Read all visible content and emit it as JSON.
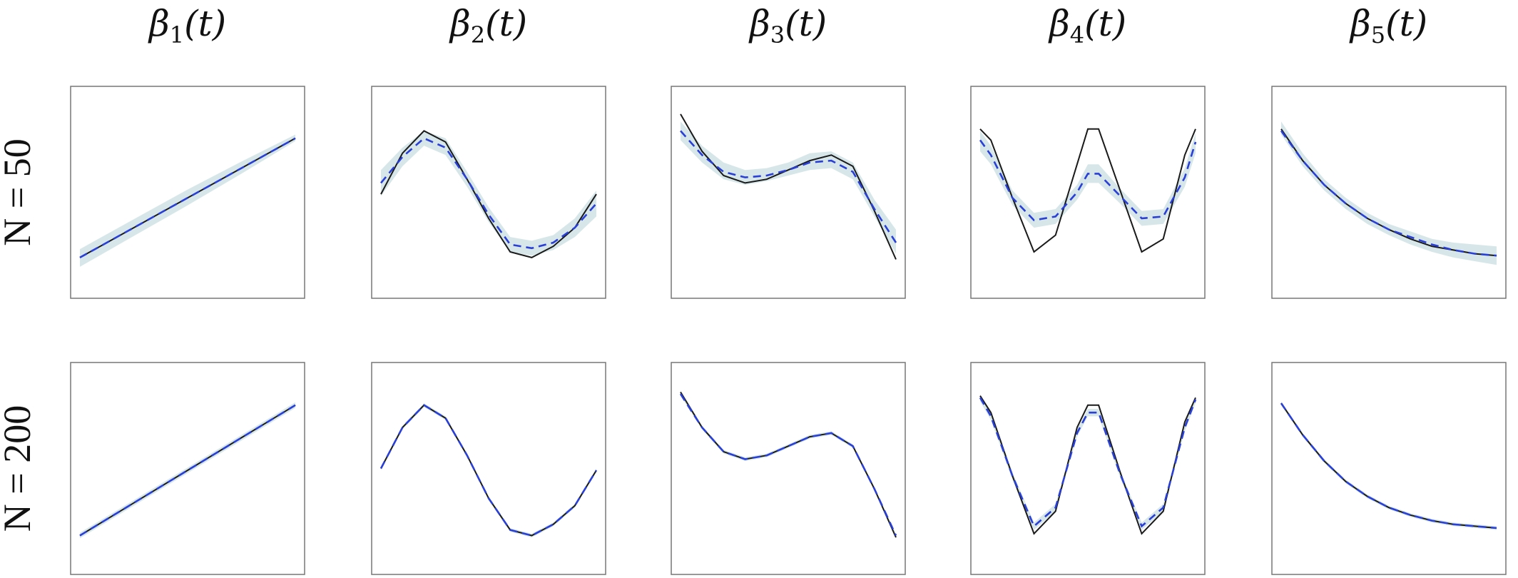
{
  "columns": [
    {
      "symbol": "β",
      "subscript": "1",
      "arg": "(t)"
    },
    {
      "symbol": "β",
      "subscript": "2",
      "arg": "(t)"
    },
    {
      "symbol": "β",
      "subscript": "3",
      "arg": "(t)"
    },
    {
      "symbol": "β",
      "subscript": "4",
      "arg": "(t)"
    },
    {
      "symbol": "β",
      "subscript": "5",
      "arg": "(t)"
    }
  ],
  "rows": [
    {
      "label": "N = 50"
    },
    {
      "label": "N = 200"
    }
  ],
  "colors": {
    "true_curve": "#1a1a1a",
    "estimate": "#2a3fd6",
    "band": "#c9dfe2",
    "frame": "#777777"
  },
  "chart_data": [
    {
      "type": "line",
      "row": 0,
      "col": 0,
      "x": [
        0,
        0.25,
        0.5,
        0.75,
        1
      ],
      "series": [
        {
          "values": [
            0.15,
            0.31,
            0.47,
            0.63,
            0.79
          ]
        },
        {
          "values": [
            0.15,
            0.31,
            0.47,
            0.63,
            0.79
          ]
        }
      ],
      "band_lower": [
        0.1,
        0.265,
        0.43,
        0.6,
        0.775
      ],
      "band_upper": [
        0.195,
        0.355,
        0.515,
        0.665,
        0.81
      ],
      "ylim": [
        0,
        1
      ]
    },
    {
      "type": "line",
      "row": 0,
      "col": 1,
      "x": [
        0,
        0.1,
        0.2,
        0.3,
        0.4,
        0.5,
        0.6,
        0.7,
        0.8,
        0.9,
        1
      ],
      "series": [
        {
          "values": [
            0.49,
            0.71,
            0.83,
            0.77,
            0.57,
            0.36,
            0.18,
            0.15,
            0.21,
            0.31,
            0.49
          ]
        },
        {
          "values": [
            0.55,
            0.69,
            0.79,
            0.74,
            0.57,
            0.38,
            0.22,
            0.2,
            0.23,
            0.31,
            0.44
          ]
        }
      ],
      "band_lower": [
        0.48,
        0.64,
        0.75,
        0.7,
        0.53,
        0.34,
        0.18,
        0.16,
        0.19,
        0.26,
        0.37
      ],
      "band_upper": [
        0.62,
        0.74,
        0.83,
        0.79,
        0.61,
        0.42,
        0.26,
        0.24,
        0.27,
        0.36,
        0.51
      ],
      "ylim": [
        0,
        1
      ]
    },
    {
      "type": "line",
      "row": 0,
      "col": 2,
      "x": [
        0,
        0.1,
        0.2,
        0.3,
        0.4,
        0.5,
        0.6,
        0.7,
        0.8,
        0.9,
        1
      ],
      "series": [
        {
          "values": [
            0.92,
            0.72,
            0.59,
            0.55,
            0.57,
            0.62,
            0.67,
            0.7,
            0.64,
            0.4,
            0.14
          ]
        },
        {
          "values": [
            0.83,
            0.7,
            0.61,
            0.58,
            0.59,
            0.62,
            0.66,
            0.67,
            0.61,
            0.41,
            0.23
          ]
        }
      ],
      "band_lower": [
        0.78,
        0.66,
        0.57,
        0.54,
        0.56,
        0.59,
        0.62,
        0.63,
        0.57,
        0.37,
        0.17
      ],
      "band_upper": [
        0.88,
        0.75,
        0.66,
        0.62,
        0.63,
        0.66,
        0.71,
        0.72,
        0.66,
        0.46,
        0.3
      ],
      "ylim": [
        0,
        1
      ]
    },
    {
      "type": "line",
      "row": 0,
      "col": 3,
      "x": [
        0,
        0.05,
        0.15,
        0.25,
        0.35,
        0.45,
        0.5,
        0.55,
        0.65,
        0.75,
        0.85,
        0.95,
        1
      ],
      "series": [
        {
          "values": [
            0.84,
            0.78,
            0.47,
            0.18,
            0.27,
            0.65,
            0.84,
            0.84,
            0.51,
            0.18,
            0.25,
            0.7,
            0.84
          ]
        },
        {
          "values": [
            0.78,
            0.7,
            0.47,
            0.35,
            0.37,
            0.5,
            0.6,
            0.6,
            0.48,
            0.36,
            0.37,
            0.58,
            0.77
          ]
        }
      ],
      "band_lower": [
        0.72,
        0.65,
        0.43,
        0.31,
        0.33,
        0.46,
        0.55,
        0.55,
        0.44,
        0.32,
        0.33,
        0.53,
        0.71
      ],
      "band_upper": [
        0.83,
        0.75,
        0.51,
        0.39,
        0.41,
        0.54,
        0.65,
        0.65,
        0.52,
        0.4,
        0.41,
        0.63,
        0.82
      ],
      "ylim": [
        0,
        1
      ]
    },
    {
      "type": "line",
      "row": 0,
      "col": 4,
      "x": [
        0,
        0.1,
        0.2,
        0.3,
        0.4,
        0.5,
        0.6,
        0.7,
        0.8,
        0.9,
        1
      ],
      "series": [
        {
          "values": [
            0.84,
            0.67,
            0.54,
            0.44,
            0.36,
            0.3,
            0.25,
            0.21,
            0.19,
            0.17,
            0.16
          ]
        },
        {
          "values": [
            0.83,
            0.67,
            0.54,
            0.44,
            0.36,
            0.3,
            0.26,
            0.22,
            0.19,
            0.17,
            0.16
          ]
        }
      ],
      "band_lower": [
        0.81,
        0.64,
        0.51,
        0.41,
        0.33,
        0.27,
        0.22,
        0.18,
        0.15,
        0.13,
        0.11
      ],
      "band_upper": [
        0.88,
        0.71,
        0.57,
        0.47,
        0.39,
        0.33,
        0.29,
        0.25,
        0.23,
        0.22,
        0.21
      ],
      "ylim": [
        0,
        1
      ]
    },
    {
      "type": "line",
      "row": 1,
      "col": 0,
      "x": [
        0,
        0.25,
        0.5,
        0.75,
        1
      ],
      "series": [
        {
          "values": [
            0.14,
            0.315,
            0.49,
            0.665,
            0.84
          ]
        },
        {
          "values": [
            0.14,
            0.315,
            0.49,
            0.665,
            0.84
          ]
        }
      ],
      "band_lower": [
        0.125,
        0.3,
        0.475,
        0.65,
        0.825
      ],
      "band_upper": [
        0.155,
        0.33,
        0.505,
        0.68,
        0.855
      ],
      "ylim": [
        0,
        1
      ]
    },
    {
      "type": "line",
      "row": 1,
      "col": 1,
      "x": [
        0,
        0.1,
        0.2,
        0.3,
        0.4,
        0.5,
        0.6,
        0.7,
        0.8,
        0.9,
        1
      ],
      "series": [
        {
          "values": [
            0.5,
            0.72,
            0.84,
            0.77,
            0.57,
            0.34,
            0.17,
            0.14,
            0.2,
            0.3,
            0.49
          ]
        },
        {
          "values": [
            0.5,
            0.72,
            0.84,
            0.77,
            0.57,
            0.34,
            0.17,
            0.14,
            0.2,
            0.3,
            0.49
          ]
        }
      ],
      "band_lower": [
        0.49,
        0.71,
        0.83,
        0.76,
        0.56,
        0.33,
        0.16,
        0.13,
        0.19,
        0.29,
        0.48
      ],
      "band_upper": [
        0.51,
        0.73,
        0.85,
        0.78,
        0.58,
        0.35,
        0.18,
        0.15,
        0.21,
        0.31,
        0.5
      ],
      "ylim": [
        0,
        1
      ]
    },
    {
      "type": "line",
      "row": 1,
      "col": 2,
      "x": [
        0,
        0.1,
        0.2,
        0.3,
        0.4,
        0.5,
        0.6,
        0.7,
        0.8,
        0.9,
        1
      ],
      "series": [
        {
          "values": [
            0.91,
            0.72,
            0.59,
            0.55,
            0.57,
            0.62,
            0.67,
            0.69,
            0.62,
            0.39,
            0.13
          ]
        },
        {
          "values": [
            0.9,
            0.72,
            0.59,
            0.55,
            0.57,
            0.62,
            0.67,
            0.69,
            0.62,
            0.39,
            0.14
          ]
        }
      ],
      "band_lower": [
        0.89,
        0.71,
        0.58,
        0.54,
        0.56,
        0.61,
        0.66,
        0.68,
        0.61,
        0.38,
        0.13
      ],
      "band_upper": [
        0.92,
        0.73,
        0.6,
        0.56,
        0.58,
        0.63,
        0.68,
        0.7,
        0.63,
        0.4,
        0.15
      ],
      "ylim": [
        0,
        1
      ]
    },
    {
      "type": "line",
      "row": 1,
      "col": 3,
      "x": [
        0,
        0.05,
        0.15,
        0.25,
        0.35,
        0.45,
        0.5,
        0.55,
        0.65,
        0.75,
        0.85,
        0.95,
        1
      ],
      "series": [
        {
          "values": [
            0.89,
            0.8,
            0.46,
            0.15,
            0.27,
            0.72,
            0.84,
            0.84,
            0.48,
            0.15,
            0.27,
            0.75,
            0.88
          ]
        },
        {
          "values": [
            0.88,
            0.78,
            0.46,
            0.19,
            0.29,
            0.69,
            0.8,
            0.8,
            0.47,
            0.19,
            0.29,
            0.72,
            0.87
          ]
        }
      ],
      "band_lower": [
        0.86,
        0.76,
        0.44,
        0.17,
        0.27,
        0.67,
        0.78,
        0.78,
        0.45,
        0.17,
        0.27,
        0.7,
        0.85
      ],
      "band_upper": [
        0.9,
        0.8,
        0.48,
        0.21,
        0.31,
        0.71,
        0.82,
        0.82,
        0.49,
        0.21,
        0.31,
        0.74,
        0.89
      ],
      "ylim": [
        0,
        1
      ]
    },
    {
      "type": "line",
      "row": 1,
      "col": 4,
      "x": [
        0,
        0.1,
        0.2,
        0.3,
        0.4,
        0.5,
        0.6,
        0.7,
        0.8,
        0.9,
        1
      ],
      "series": [
        {
          "values": [
            0.85,
            0.68,
            0.54,
            0.43,
            0.35,
            0.29,
            0.25,
            0.22,
            0.2,
            0.19,
            0.18
          ]
        },
        {
          "values": [
            0.85,
            0.68,
            0.54,
            0.43,
            0.35,
            0.29,
            0.25,
            0.22,
            0.2,
            0.19,
            0.18
          ]
        }
      ],
      "band_lower": [
        0.84,
        0.67,
        0.53,
        0.42,
        0.34,
        0.28,
        0.24,
        0.21,
        0.19,
        0.18,
        0.17
      ],
      "band_upper": [
        0.86,
        0.69,
        0.55,
        0.44,
        0.36,
        0.3,
        0.26,
        0.23,
        0.21,
        0.2,
        0.19
      ],
      "ylim": [
        0,
        1
      ]
    }
  ]
}
